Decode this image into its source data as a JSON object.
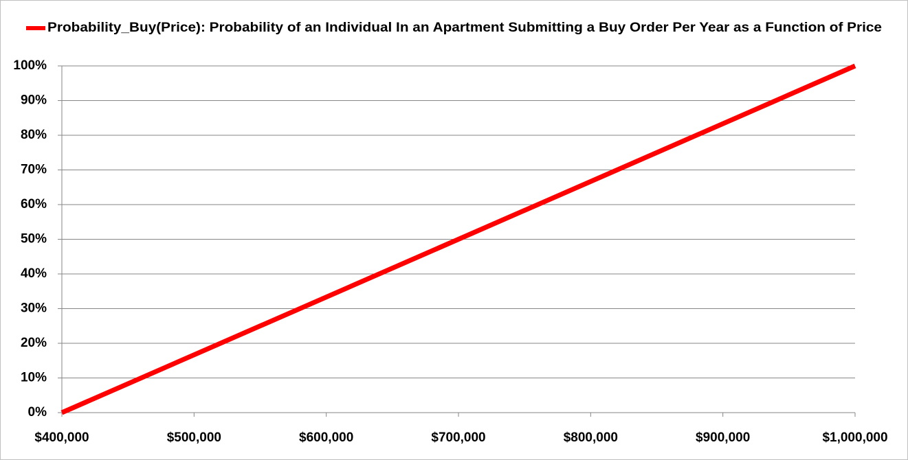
{
  "chart_data": {
    "type": "line",
    "x": [
      400000,
      1000000
    ],
    "series": [
      {
        "name": "Probability_Buy(Price): Probability of an Individual In an Apartment Submitting a Buy Order Per Year as a Function of Price",
        "color": "#ff0000",
        "values": [
          0,
          100
        ]
      }
    ],
    "xlim": [
      400000,
      1000000
    ],
    "xticks": [
      {
        "value": 400000,
        "label": "$400,000"
      },
      {
        "value": 500000,
        "label": "$500,000"
      },
      {
        "value": 600000,
        "label": "$600,000"
      },
      {
        "value": 700000,
        "label": "$700,000"
      },
      {
        "value": 800000,
        "label": "$800,000"
      },
      {
        "value": 900000,
        "label": "$900,000"
      },
      {
        "value": 1000000,
        "label": "$1,000,000"
      }
    ],
    "ylim": [
      0,
      100
    ],
    "yticks": [
      {
        "value": 0,
        "label": "0%"
      },
      {
        "value": 10,
        "label": "10%"
      },
      {
        "value": 20,
        "label": "20%"
      },
      {
        "value": 30,
        "label": "30%"
      },
      {
        "value": 40,
        "label": "40%"
      },
      {
        "value": 50,
        "label": "50%"
      },
      {
        "value": 60,
        "label": "60%"
      },
      {
        "value": 70,
        "label": "70%"
      },
      {
        "value": 80,
        "label": "80%"
      },
      {
        "value": 90,
        "label": "90%"
      },
      {
        "value": 100,
        "label": "100%"
      }
    ],
    "grid": true,
    "legend": "top"
  }
}
